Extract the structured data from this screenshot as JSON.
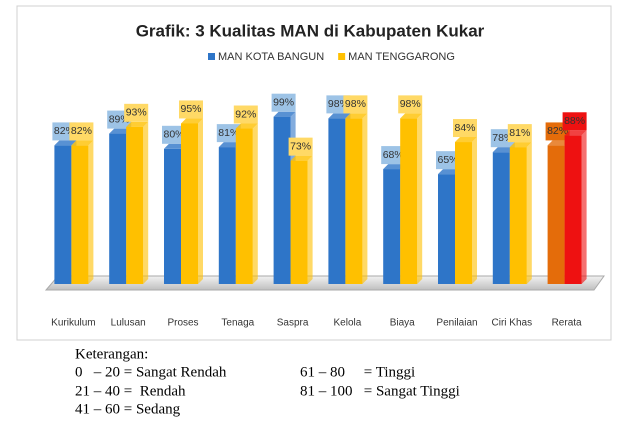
{
  "chart_data": {
    "type": "bar",
    "title": "Grafik: 3 Kualitas MAN di Kabupaten Kukar",
    "categories": [
      "Kurikulum",
      "Lulusan",
      "Proses",
      "Tenaga",
      "Saspra",
      "Kelola",
      "Biaya",
      "Penilaian",
      "Ciri Khas",
      "Rerata"
    ],
    "series": [
      {
        "name": "MAN KOTA BANGUN",
        "color": "#2e75c8",
        "colors": [
          "#2e75c8",
          "#2e75c8",
          "#2e75c8",
          "#2e75c8",
          "#2e75c8",
          "#2e75c8",
          "#2e75c8",
          "#2e75c8",
          "#2e75c8",
          "#e46c0a"
        ],
        "values": [
          82,
          89,
          80,
          81,
          99,
          98,
          68,
          65,
          78,
          82
        ],
        "value_labels": [
          "82%",
          "89%",
          "80%",
          "81%",
          "99%",
          "98%",
          "68%",
          "65%",
          "78%",
          "82%"
        ]
      },
      {
        "name": "MAN TENGGARONG",
        "color": "#ffc000",
        "colors": [
          "#ffc000",
          "#ffc000",
          "#ffc000",
          "#ffc000",
          "#ffc000",
          "#ffc000",
          "#ffc000",
          "#ffc000",
          "#ffc000",
          "#ee1111"
        ],
        "values": [
          82,
          93,
          95,
          92,
          73,
          98,
          98,
          84,
          81,
          88
        ],
        "value_labels": [
          "82%",
          "93%",
          "95%",
          "92%",
          "73%",
          "98%",
          "98%",
          "84%",
          "81%",
          "88%"
        ]
      }
    ]
  },
  "notes": {
    "heading": "Keterangan:",
    "rows": [
      [
        "0   – 20 = Sangat Rendah",
        "61 – 80     = Tinggi"
      ],
      [
        "21 – 40 =  Rendah",
        "81 – 100   = Sangat Tinggi"
      ],
      [
        "41 – 60 = Sedang"
      ]
    ]
  }
}
